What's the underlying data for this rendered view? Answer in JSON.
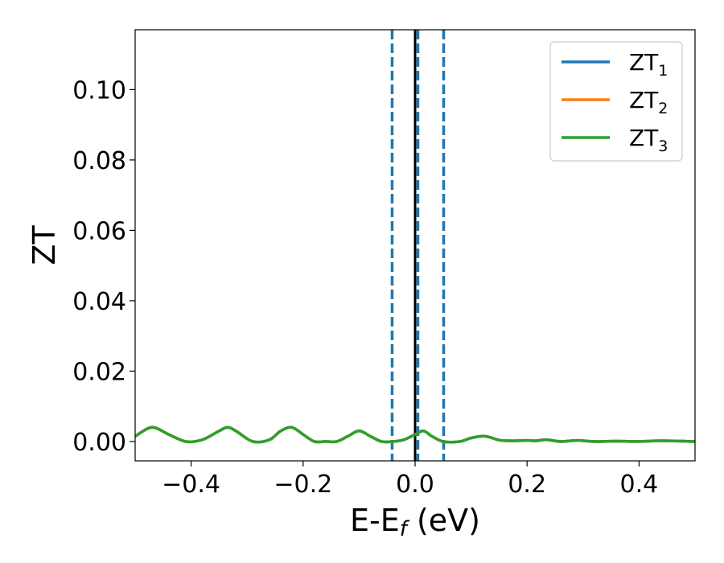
{
  "chart_data": {
    "type": "line",
    "xlabel": "E-E",
    "xlabel_sub": "f",
    "xlabel_unit": " (eV)",
    "ylabel": "ZT",
    "xlim": [
      -0.5,
      0.5
    ],
    "ylim": [
      -0.0055,
      0.117
    ],
    "xticks": [
      -0.4,
      -0.2,
      0.0,
      0.2,
      0.4
    ],
    "xtick_labels": [
      "−0.4",
      "−0.2",
      "0.0",
      "0.2",
      "0.4"
    ],
    "yticks": [
      0.0,
      0.02,
      0.04,
      0.06,
      0.08,
      0.1
    ],
    "ytick_labels": [
      "0.00",
      "0.02",
      "0.04",
      "0.06",
      "0.08",
      "0.10"
    ],
    "legend_position": "top-right",
    "grid": false,
    "series": [
      {
        "name": "ZT",
        "sub": "1",
        "color": "#1f77b4",
        "x": [
          -0.5,
          -0.47,
          -0.44,
          -0.41,
          -0.38,
          -0.35,
          -0.335,
          -0.32,
          -0.29,
          -0.26,
          -0.24,
          -0.22,
          -0.2,
          -0.18,
          -0.16,
          -0.14,
          -0.12,
          -0.1,
          -0.08,
          -0.06,
          -0.04,
          -0.02,
          0.0,
          0.015,
          0.03,
          0.05,
          0.08,
          0.1,
          0.125,
          0.15,
          0.17,
          0.2,
          0.215,
          0.235,
          0.26,
          0.29,
          0.32,
          0.36,
          0.4,
          0.44,
          0.5
        ],
        "y": [
          0.0015,
          0.004,
          0.002,
          0.0,
          0.0005,
          0.003,
          0.004,
          0.003,
          0.0,
          0.0005,
          0.003,
          0.004,
          0.002,
          0.0,
          0.0,
          0.0,
          0.0015,
          0.003,
          0.0015,
          0.0,
          0.0,
          0.0005,
          0.002,
          0.003,
          0.0015,
          0.0,
          0.0,
          0.001,
          0.0015,
          0.0004,
          0.0002,
          0.0003,
          0.0002,
          0.0005,
          0.0,
          0.0003,
          0.0,
          0.0001,
          0.0,
          0.0002,
          0.0
        ]
      },
      {
        "name": "ZT",
        "sub": "2",
        "color": "#ff7f0e",
        "x": [
          -0.5,
          -0.47,
          -0.44,
          -0.41,
          -0.38,
          -0.35,
          -0.335,
          -0.32,
          -0.29,
          -0.26,
          -0.24,
          -0.22,
          -0.2,
          -0.18,
          -0.16,
          -0.14,
          -0.12,
          -0.1,
          -0.08,
          -0.06,
          -0.04,
          -0.02,
          0.0,
          0.015,
          0.03,
          0.05,
          0.08,
          0.1,
          0.125,
          0.15,
          0.17,
          0.2,
          0.215,
          0.235,
          0.26,
          0.29,
          0.32,
          0.36,
          0.4,
          0.44,
          0.5
        ],
        "y": [
          0.0015,
          0.004,
          0.002,
          0.0,
          0.0005,
          0.003,
          0.004,
          0.003,
          0.0,
          0.0005,
          0.003,
          0.004,
          0.002,
          0.0,
          0.0,
          0.0,
          0.0015,
          0.003,
          0.0015,
          0.0,
          0.0,
          0.0005,
          0.002,
          0.003,
          0.0015,
          0.0,
          0.0,
          0.001,
          0.0015,
          0.0004,
          0.0002,
          0.0003,
          0.0002,
          0.0005,
          0.0,
          0.0003,
          0.0,
          0.0001,
          0.0,
          0.0002,
          0.0
        ]
      },
      {
        "name": "ZT",
        "sub": "3",
        "color": "#2ca02c",
        "x": [
          -0.5,
          -0.47,
          -0.44,
          -0.41,
          -0.38,
          -0.35,
          -0.335,
          -0.32,
          -0.29,
          -0.26,
          -0.24,
          -0.22,
          -0.2,
          -0.18,
          -0.16,
          -0.14,
          -0.12,
          -0.1,
          -0.08,
          -0.06,
          -0.04,
          -0.02,
          0.0,
          0.015,
          0.03,
          0.05,
          0.08,
          0.1,
          0.125,
          0.15,
          0.17,
          0.2,
          0.215,
          0.235,
          0.26,
          0.29,
          0.32,
          0.36,
          0.4,
          0.44,
          0.5
        ],
        "y": [
          0.0015,
          0.004,
          0.002,
          0.0,
          0.0005,
          0.003,
          0.004,
          0.003,
          0.0,
          0.0005,
          0.003,
          0.004,
          0.002,
          0.0,
          0.0,
          0.0,
          0.0015,
          0.003,
          0.0015,
          0.0,
          0.0,
          0.0005,
          0.002,
          0.003,
          0.0015,
          0.0,
          0.0,
          0.001,
          0.0015,
          0.0004,
          0.0002,
          0.0003,
          0.0002,
          0.0005,
          0.0,
          0.0003,
          0.0,
          0.0001,
          0.0,
          0.0002,
          0.0
        ]
      }
    ],
    "vlines": [
      {
        "x": -0.041,
        "color": "#1f77b4",
        "style": "dashed"
      },
      {
        "x": 0.005,
        "color": "#1f77b4",
        "style": "dashed"
      },
      {
        "x": 0.051,
        "color": "#1f77b4",
        "style": "dashed"
      },
      {
        "x": 0.0,
        "color": "#000000",
        "style": "solid"
      }
    ]
  }
}
